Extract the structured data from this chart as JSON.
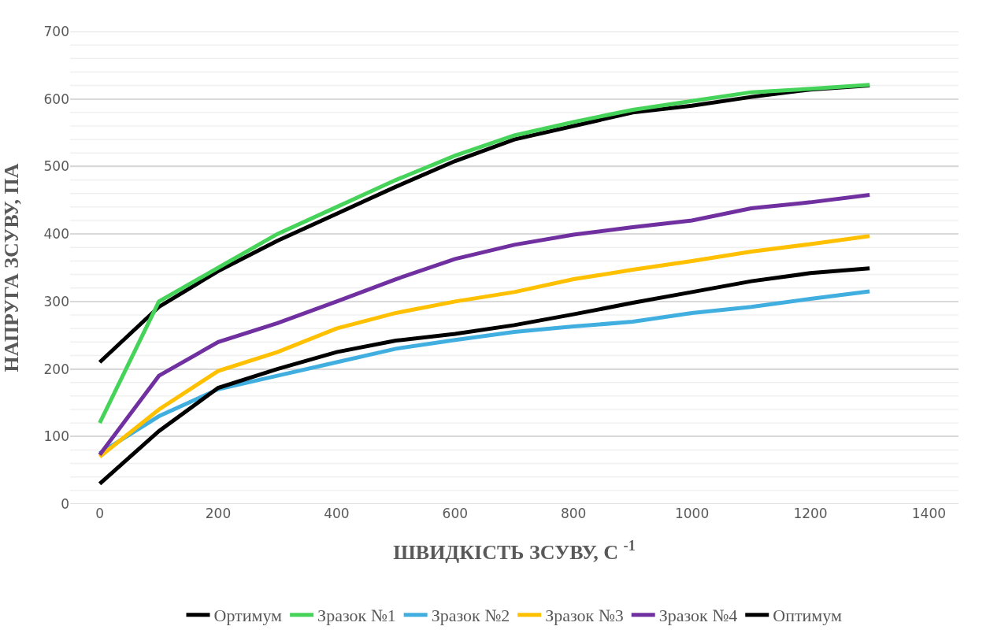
{
  "chart_data": {
    "type": "line",
    "xlabel": "ШВИДКІСТЬ ЗСУВУ, С $^{-1}$",
    "ylabel": "НАПРУГА ЗСУВУ, ПА",
    "x": [
      0,
      100,
      200,
      300,
      400,
      500,
      600,
      700,
      800,
      900,
      1000,
      1100,
      1200,
      1300
    ],
    "series": [
      {
        "name": "Ортимум",
        "color": "#000000",
        "values": [
          210,
          292,
          345,
          390,
          430,
          470,
          508,
          540,
          560,
          580,
          590,
          603,
          614,
          620
        ]
      },
      {
        "name": "Зразок №1",
        "color": "#46d35a",
        "values": [
          120,
          300,
          350,
          400,
          440,
          480,
          516,
          546,
          566,
          584,
          597,
          610,
          615,
          621
        ]
      },
      {
        "name": "Зразок №2",
        "color": "#41aee0",
        "values": [
          75,
          130,
          170,
          190,
          210,
          230,
          243,
          255,
          263,
          270,
          283,
          292,
          304,
          315
        ]
      },
      {
        "name": "Зразок №3",
        "color": "#ffc000",
        "values": [
          70,
          140,
          197,
          225,
          260,
          283,
          300,
          314,
          333,
          347,
          360,
          374,
          385,
          397
        ]
      },
      {
        "name": "Зразок №4",
        "color": "#7030a0",
        "values": [
          73,
          190,
          240,
          268,
          300,
          333,
          363,
          384,
          399,
          410,
          420,
          438,
          447,
          458
        ]
      },
      {
        "name": "Оптимум",
        "color": "#000000",
        "values": [
          30,
          108,
          172,
          200,
          225,
          242,
          252,
          265,
          281,
          298,
          314,
          330,
          342,
          349
        ]
      }
    ],
    "xlim": [
      -50,
      1450
    ],
    "xticks": [
      0,
      200,
      400,
      600,
      800,
      1000,
      1200,
      1400
    ],
    "ylim": [
      0,
      700
    ],
    "yticks": [
      0,
      100,
      200,
      300,
      400,
      500,
      600,
      700
    ],
    "grid": "y",
    "legend": "bottom",
    "marker": "none",
    "line_style": "solid"
  }
}
